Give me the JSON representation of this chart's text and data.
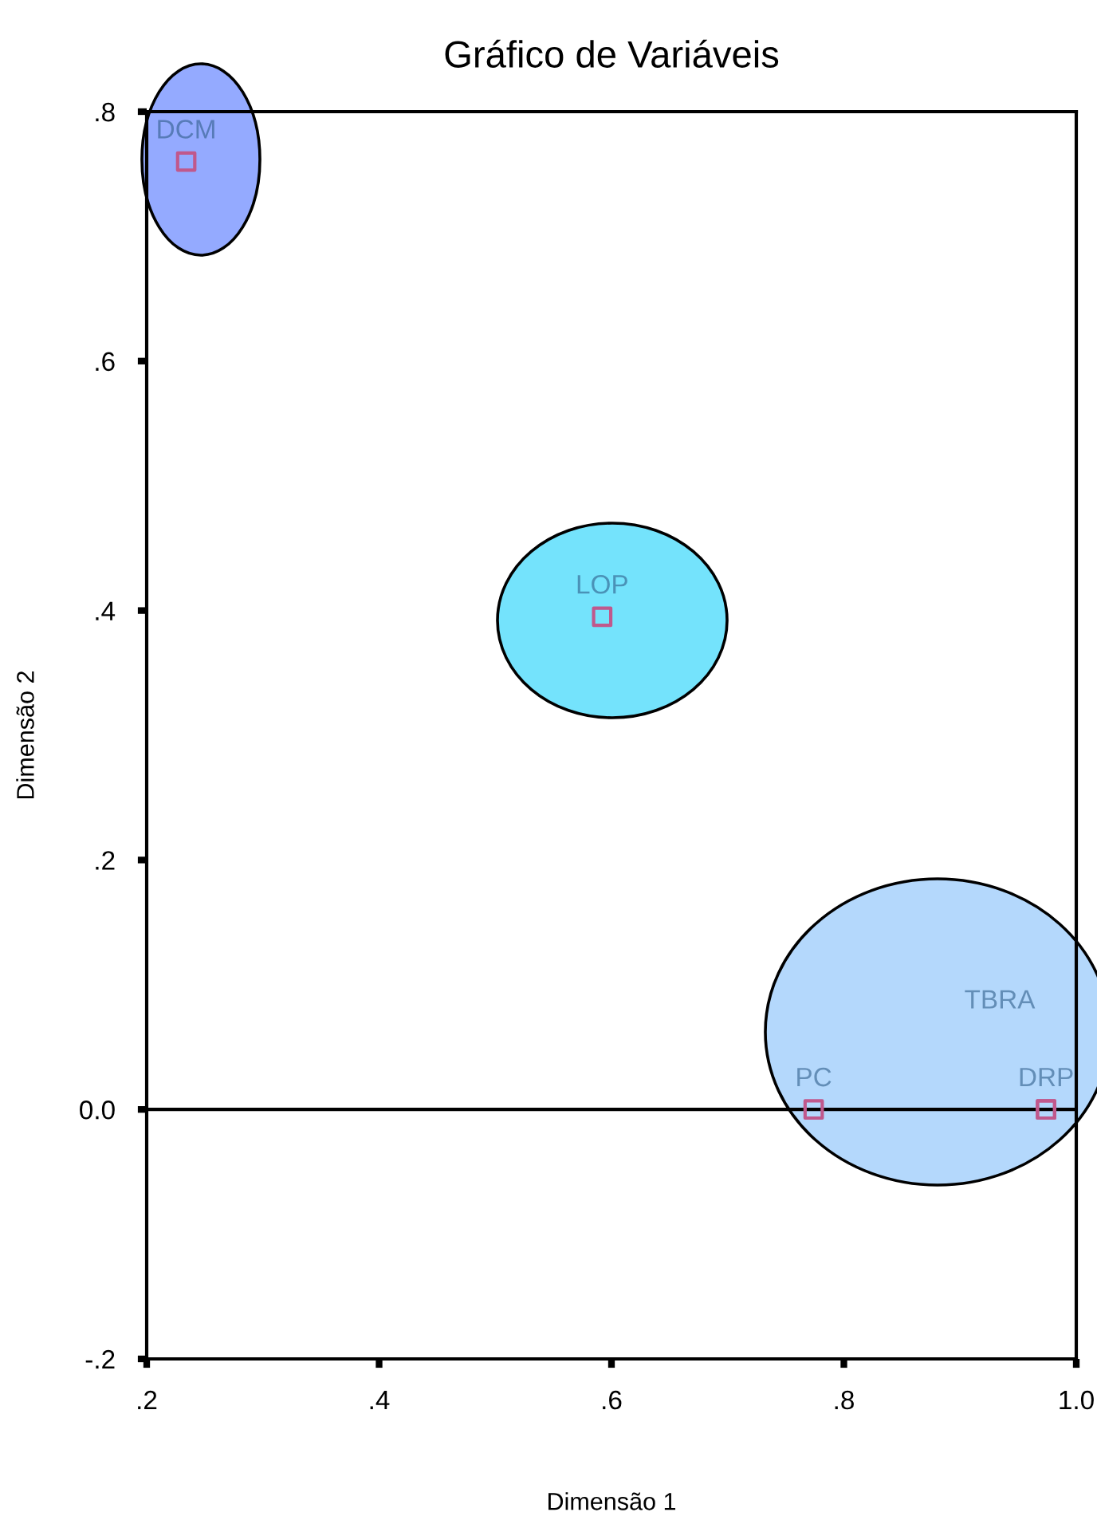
{
  "chart_data": {
    "type": "scatter",
    "title": "Gráfico de Variáveis",
    "xlabel": "Dimensão 1",
    "ylabel": "Dimensão 2",
    "x": [
      0.234,
      0.592,
      0.774,
      0.974,
      0.974
    ],
    "series": [
      {
        "color": "#c0588c",
        "values": [
          0.76,
          0.395,
          0.0,
          0.0,
          0.0
        ]
      }
    ],
    "marker": "square",
    "annotations": [
      {
        "text": "DCM",
        "x": 0.234,
        "y": 0.76
      },
      {
        "text": "LOP",
        "x": 0.592,
        "y": 0.395
      },
      {
        "text": "PC",
        "x": 0.774,
        "y": 0.0
      },
      {
        "text": "DRP",
        "x": 0.974,
        "y": 0.0
      },
      "TBRA"
    ],
    "ref_lines": [
      {
        "axis": "y",
        "value": 0.0,
        "color": "#000000"
      }
    ],
    "xlim": [
      0.2,
      1.0
    ],
    "ylim": [
      -0.2,
      0.8
    ],
    "xticks": [
      {
        "value": 0.2,
        "label": ".2"
      },
      {
        "value": 0.4,
        "label": ".4"
      },
      {
        "value": 0.6,
        "label": ".6"
      },
      {
        "value": 0.8,
        "label": ".8"
      },
      {
        "value": 1.0,
        "label": "1.0"
      }
    ],
    "yticks": [
      {
        "value": -0.2,
        "label": "-.2"
      },
      {
        "value": 0.0,
        "label": "0.0"
      },
      {
        "value": 0.2,
        "label": ".2"
      },
      {
        "value": 0.4,
        "label": ".4"
      },
      {
        "value": 0.6,
        "label": ".6"
      },
      {
        "value": 0.8,
        "label": ".8"
      }
    ],
    "grid": false,
    "legend": false
  }
}
